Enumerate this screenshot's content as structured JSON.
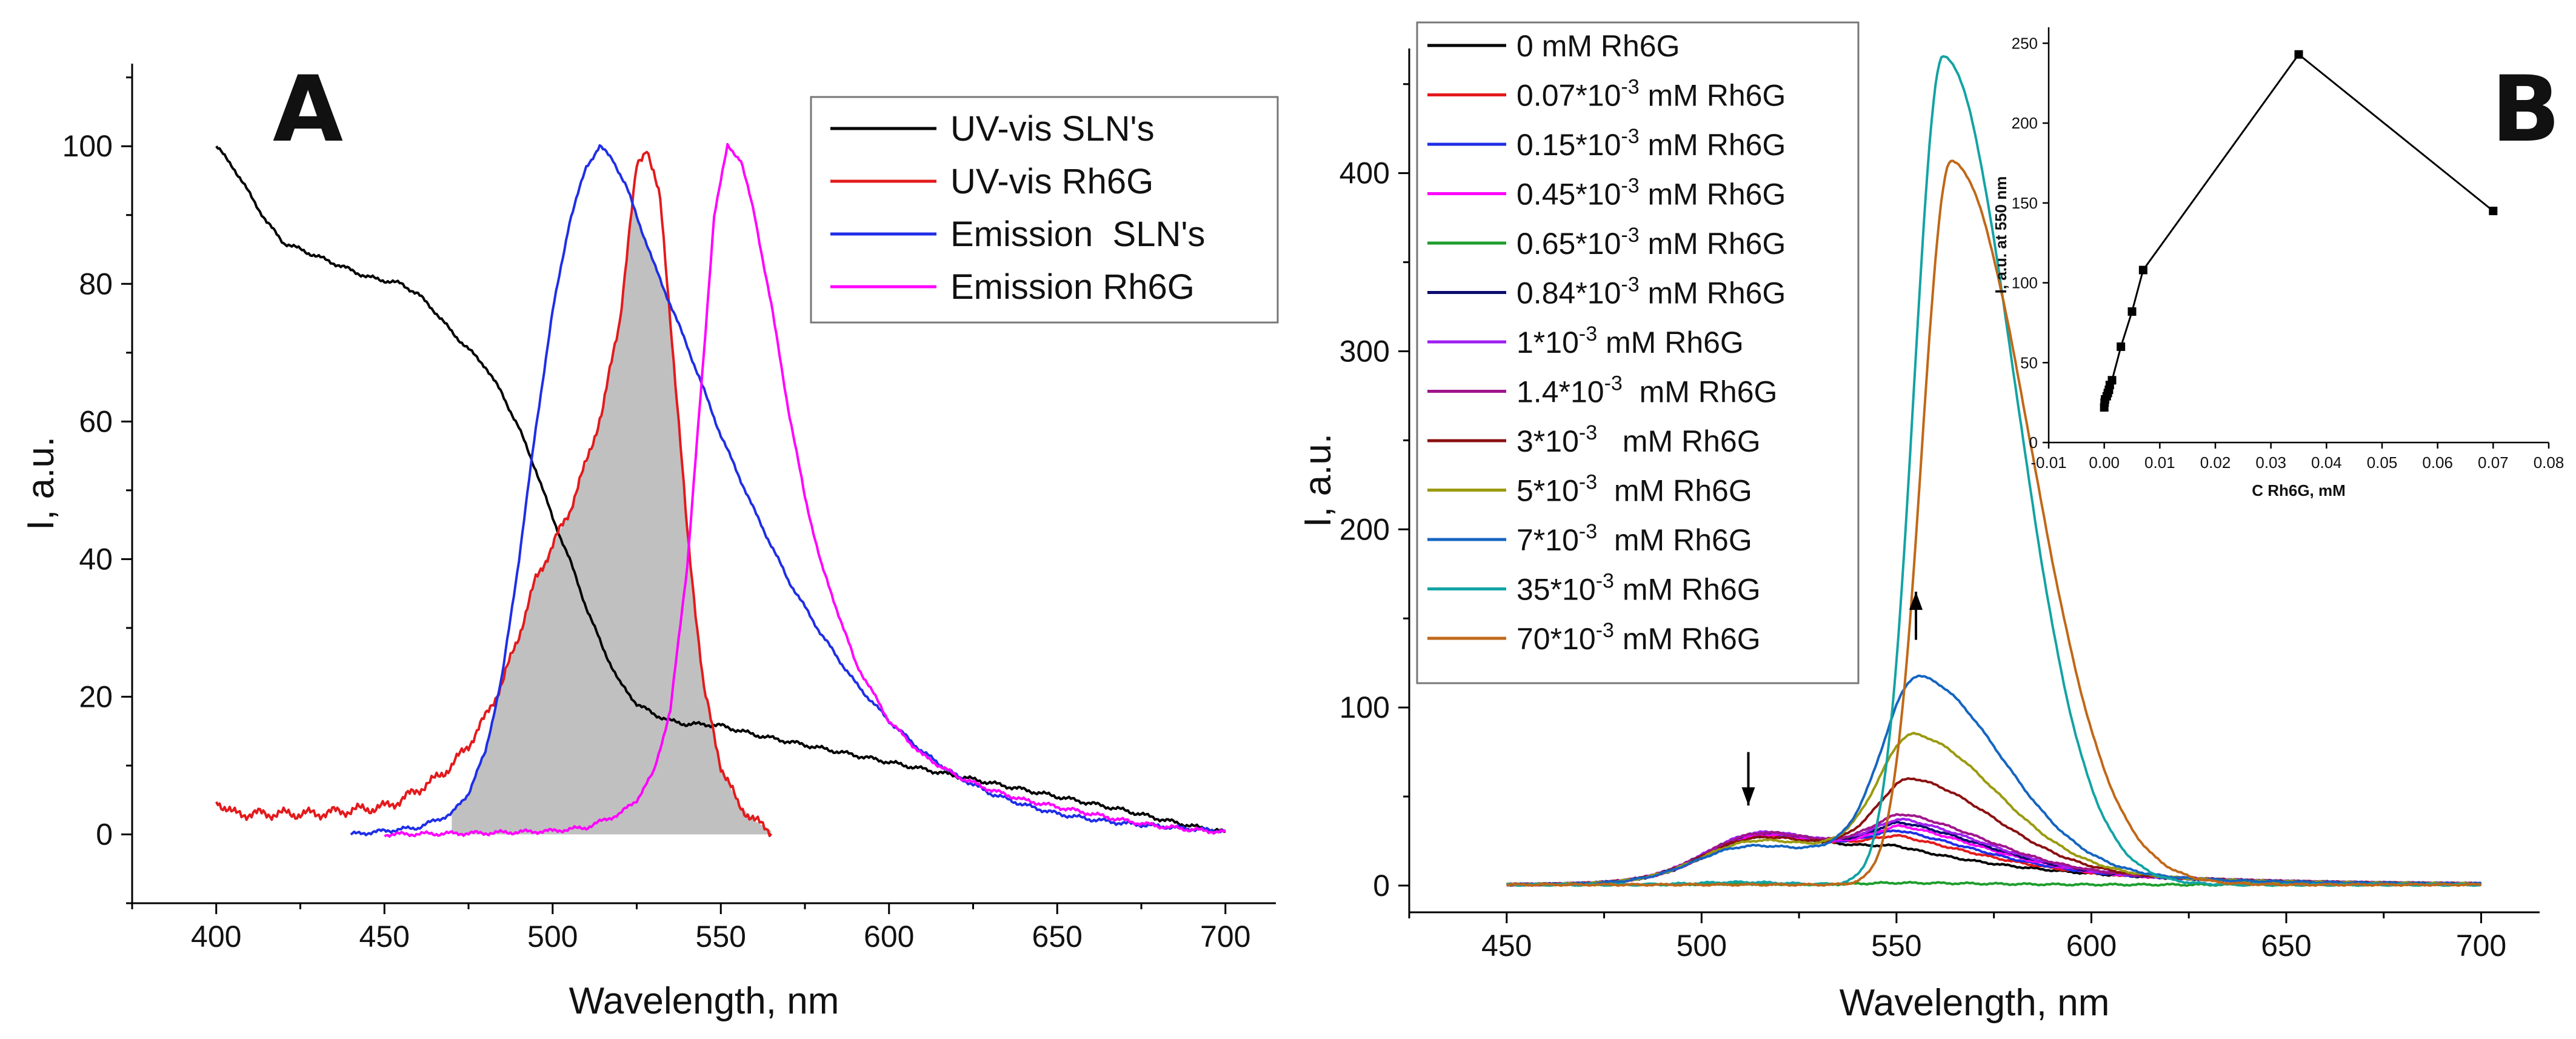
{
  "chart_data": [
    {
      "type": "line",
      "panel": "A",
      "xlabel": "Wavelength, nm",
      "ylabel": "I, a.u.",
      "xlim": [
        375,
        715
      ],
      "ylim": [
        -10,
        112
      ],
      "x_ticks": [
        400,
        450,
        500,
        550,
        600,
        650,
        700
      ],
      "y_ticks": [
        0,
        20,
        40,
        60,
        80,
        100
      ],
      "legend_position": "top-right",
      "shaded_overlap": {
        "between": [
          "Emission  SLN's",
          "UV-vis Rh6G"
        ],
        "color": "#c0c0c0"
      },
      "series": [
        {
          "name": "UV-vis SLN's",
          "color": "#000000",
          "x": [
            400,
            405,
            410,
            415,
            420,
            430,
            440,
            445,
            450,
            455,
            460,
            465,
            470,
            475,
            480,
            485,
            490,
            495,
            500,
            505,
            510,
            515,
            520,
            525,
            530,
            535,
            540,
            545,
            550,
            560,
            570,
            580,
            590,
            600,
            610,
            620,
            630,
            640,
            650,
            660,
            670,
            680,
            690,
            700
          ],
          "y": [
            100,
            97,
            93,
            89,
            86,
            84,
            82,
            81,
            80.5,
            80,
            78.5,
            76,
            73,
            70.5,
            68,
            64,
            59,
            53,
            46,
            40,
            33,
            27,
            22,
            19,
            17.5,
            16.5,
            16,
            16,
            15.8,
            14.5,
            13.5,
            12.5,
            11.5,
            10.5,
            9.5,
            8.5,
            7.5,
            6.5,
            5.5,
            4.5,
            3.5,
            2.3,
            1.2,
            0.3
          ]
        },
        {
          "name": "UV-vis Rh6G",
          "color": "#e31a1c",
          "x": [
            400,
            405,
            410,
            420,
            430,
            440,
            450,
            455,
            460,
            465,
            470,
            475,
            480,
            485,
            490,
            495,
            500,
            505,
            510,
            515,
            520,
            525,
            528,
            532,
            535,
            540,
            545,
            550,
            555,
            560,
            565
          ],
          "y": [
            5,
            3,
            3,
            3,
            3,
            3.5,
            4,
            5,
            6.5,
            8,
            10,
            13,
            17,
            22,
            29,
            37,
            42,
            47,
            54,
            62,
            75,
            97,
            100,
            92,
            75,
            44,
            21,
            10,
            4.5,
            2,
            0.5
          ]
        },
        {
          "name": "Emission  SLN's",
          "color": "#1f2ee6",
          "x": [
            440,
            450,
            460,
            470,
            475,
            480,
            485,
            490,
            495,
            500,
            505,
            510,
            514,
            518,
            522,
            530,
            540,
            550,
            560,
            570,
            580,
            590,
            600,
            610,
            620,
            630,
            640,
            650,
            660,
            670,
            680,
            690,
            700
          ],
          "y": [
            0,
            0.5,
            1,
            3,
            6,
            12,
            23,
            40,
            59,
            76,
            89,
            97,
            100,
            98,
            94,
            83,
            71,
            58,
            47,
            37,
            29,
            22,
            16.5,
            12,
            8.5,
            6,
            4.3,
            3,
            2.2,
            1.6,
            1.2,
            0.8,
            0.5
          ]
        },
        {
          "name": "Emission Rh6G",
          "color": "#ff00ff",
          "x": [
            450,
            480,
            500,
            510,
            515,
            520,
            525,
            530,
            535,
            540,
            545,
            548,
            552,
            556,
            560,
            565,
            570,
            575,
            580,
            590,
            600,
            610,
            620,
            630,
            640,
            650,
            660,
            670,
            680,
            690,
            700
          ],
          "y": [
            0,
            0.2,
            0.5,
            1,
            2,
            3,
            5,
            9,
            18,
            39,
            70,
            90,
            100,
            98,
            90,
            77,
            62,
            49,
            39,
            25,
            16.5,
            11.5,
            8.5,
            6.5,
            5,
            4,
            3,
            2,
            1.2,
            0.7,
            0.3
          ]
        }
      ]
    },
    {
      "type": "line",
      "panel": "B",
      "xlabel": "Wavelength, nm",
      "ylabel": "I, a.u.",
      "xlim": [
        425,
        715
      ],
      "ylim": [
        -15,
        470
      ],
      "x_ticks": [
        450,
        500,
        550,
        600,
        650,
        700
      ],
      "y_ticks": [
        0,
        100,
        200,
        300,
        400
      ],
      "legend_position": "top-left",
      "annotations": [
        {
          "type": "arrow-down",
          "x": 512,
          "y_from": 75,
          "y_to": 45
        },
        {
          "type": "arrow-up",
          "x": 555,
          "y_from": 138,
          "y_to": 165
        }
      ],
      "series": [
        {
          "name": "0 mM Rh6G",
          "label_html": "0 mM Rh6G",
          "color": "#000000",
          "p1": 25,
          "c1": 514,
          "w1": 16,
          "p2": 0,
          "c2": 553,
          "s2l": 13,
          "s2r": 30,
          "base": 22,
          "tail": 30
        },
        {
          "name": "0.07*10-3 mM Rh6G",
          "label_pre": "0.07*10",
          "label_sup": "-3",
          "label_post": " mM Rh6G",
          "color": "#e31a1c",
          "p1": 26,
          "c1": 514,
          "w1": 16,
          "p2": 6,
          "c2": 553,
          "s2l": 13,
          "s2r": 30,
          "base": 22,
          "tail": 30
        },
        {
          "name": "0.15*10-3 mM Rh6G",
          "label_pre": "0.15*10",
          "label_sup": "-3",
          "label_post": " mM Rh6G",
          "color": "#1f2ee6",
          "p1": 27,
          "c1": 514,
          "w1": 16,
          "p2": 9,
          "c2": 553,
          "s2l": 13,
          "s2r": 30,
          "base": 22,
          "tail": 30
        },
        {
          "name": "0.45*10-3 mM Rh6G",
          "label_pre": "0.45*10",
          "label_sup": "-3",
          "label_post": " mM Rh6G",
          "color": "#ff00ff",
          "p1": 27,
          "c1": 514,
          "w1": 16,
          "p2": 12,
          "c2": 554,
          "s2l": 13,
          "s2r": 30,
          "base": 22,
          "tail": 30
        },
        {
          "name": "0.65*10-3 mM Rh6G",
          "label_pre": "0.65*10",
          "label_sup": "-3",
          "label_post": " mM Rh6G",
          "color": "#1e9e2e",
          "p1": 1.5,
          "c1": 510,
          "w1": 16,
          "p2": 1,
          "c2": 550,
          "s2l": 13,
          "s2r": 30,
          "base": 0,
          "tail": 30
        },
        {
          "name": "0.84*10-3 mM Rh6G",
          "label_pre": "0.84*10",
          "label_sup": "-3",
          "label_post": " mM Rh6G",
          "color": "#0b0b6e",
          "p1": 28,
          "c1": 513,
          "w1": 16,
          "p2": 13,
          "c2": 554,
          "s2l": 13,
          "s2r": 30,
          "base": 23,
          "tail": 30
        },
        {
          "name": "1*10-3 mM Rh6G",
          "label_pre": "1*10",
          "label_sup": "-3",
          "label_post": " mM Rh6G",
          "color": "#a020f0",
          "p1": 29,
          "c1": 513,
          "w1": 16,
          "p2": 15,
          "c2": 554,
          "s2l": 13,
          "s2r": 30,
          "base": 23,
          "tail": 30
        },
        {
          "name": "1.4*10-3  mM Rh6G",
          "label_pre": "1.4*10",
          "label_sup": "-3",
          "label_post": "  mM Rh6G",
          "color": "#a0158c",
          "p1": 28,
          "c1": 513,
          "w1": 16,
          "p2": 18,
          "c2": 554,
          "s2l": 13,
          "s2r": 30,
          "base": 23,
          "tail": 30
        },
        {
          "name": "3*10-3   mM Rh6G",
          "label_pre": "3*10",
          "label_sup": "-3",
          "label_post": "   mM Rh6G",
          "color": "#8b1010",
          "p1": 24,
          "c1": 512,
          "w1": 16,
          "p2": 40,
          "c2": 555,
          "s2l": 13,
          "s2r": 30,
          "base": 22,
          "tail": 30
        },
        {
          "name": "5*10-3  mM Rh6G",
          "label_pre": "5*10",
          "label_sup": "-3",
          "label_post": "  mM Rh6G",
          "color": "#9a9a10",
          "p1": 22,
          "c1": 511,
          "w1": 16,
          "p2": 66,
          "c2": 555,
          "s2l": 13,
          "s2r": 30,
          "base": 21,
          "tail": 30
        },
        {
          "name": "7*10-3  mM Rh6G",
          "label_pre": "7*10",
          "label_sup": "-3",
          "label_post": "  mM Rh6G",
          "color": "#1565c0",
          "p1": 18,
          "c1": 508,
          "w1": 15,
          "p2": 100,
          "c2": 556,
          "s2l": 13,
          "s2r": 30,
          "base": 20,
          "tail": 30
        },
        {
          "name": "35*10-3 mM Rh6G",
          "label_pre": "35*10",
          "label_sup": "-3",
          "label_post": " mM Rh6G",
          "color": "#13a3a3",
          "p1": 4,
          "c1": 510,
          "w1": 16,
          "p2": 465,
          "c2": 562,
          "s2l": 10.5,
          "s2r": 26,
          "base": 0,
          "tail": 30
        },
        {
          "name": "70*10-3 mM Rh6G",
          "label_pre": "70*10",
          "label_sup": "-3",
          "label_post": " mM Rh6G",
          "color": "#c06818",
          "p1": 0,
          "c1": 510,
          "w1": 16,
          "p2": 406,
          "c2": 564,
          "s2l": 10.5,
          "s2r": 29,
          "base": 0,
          "tail": 30
        }
      ]
    },
    {
      "type": "line",
      "panel": "B-inset",
      "xlabel": "C Rh6G, mM",
      "ylabel": "I, a.u. at 550 nm",
      "xlim": [
        -0.01,
        0.08
      ],
      "ylim": [
        0,
        260
      ],
      "x_ticks": [
        -0.01,
        0.0,
        0.01,
        0.02,
        0.03,
        0.04,
        0.05,
        0.06,
        0.07,
        0.08
      ],
      "x_tick_labels": [
        "-0.01",
        "0.00",
        "0.01",
        "0.02",
        "0.03",
        "0.04",
        "0.05",
        "0.06",
        "0.07",
        "0.08"
      ],
      "y_ticks": [
        0,
        50,
        100,
        150,
        200,
        250
      ],
      "markers": "square",
      "series": [
        {
          "name": "I at 550 nm",
          "color": "#000000",
          "x": [
            0,
            7e-05,
            0.00015,
            0.00045,
            0.00065,
            0.00084,
            0.001,
            0.0014,
            0.003,
            0.005,
            0.007,
            0.035,
            0.07
          ],
          "y": [
            22,
            25,
            27,
            29,
            31,
            33,
            36,
            39,
            60,
            82,
            108,
            243,
            145
          ]
        }
      ]
    }
  ]
}
